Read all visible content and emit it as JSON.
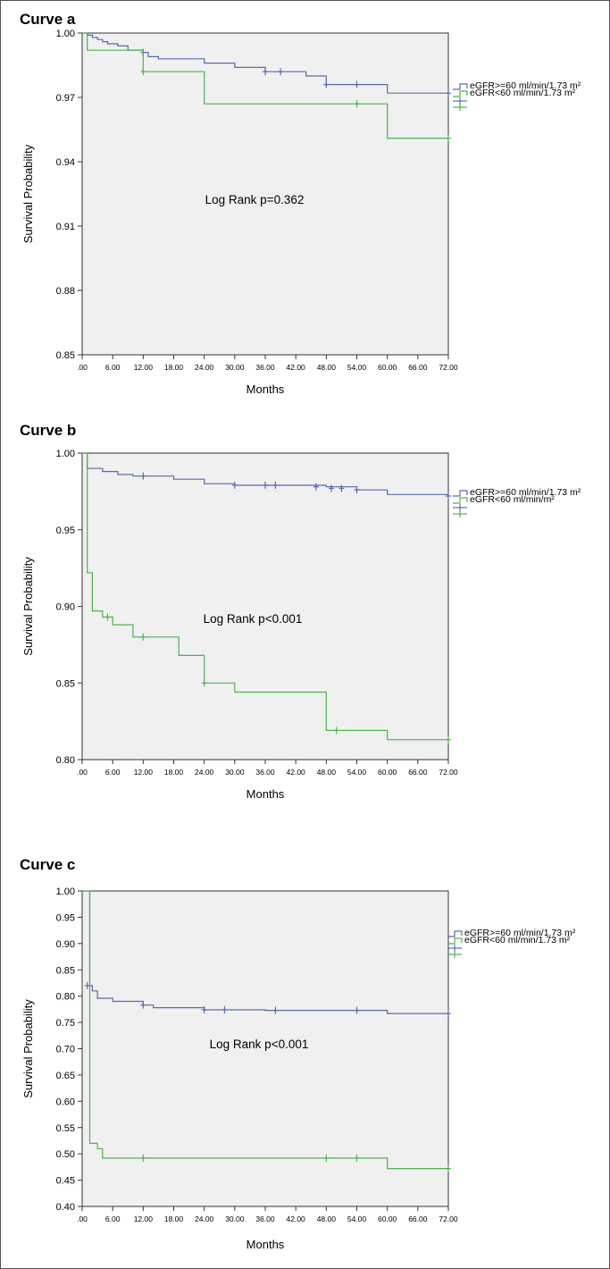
{
  "chart_data": [
    {
      "type": "line",
      "title": "Curve a",
      "xlabel": "Months",
      "ylabel": "Survival Probability",
      "xlim": [
        0,
        72
      ],
      "ylim": [
        0.85,
        1.0
      ],
      "yticks": [
        "0.85",
        "0.88",
        "0.91",
        "0.94",
        "0.97",
        "1.00"
      ],
      "ytick_values": [
        0.85,
        0.88,
        0.91,
        0.94,
        0.97,
        1.0
      ],
      "xticks": [
        ".00",
        "6.00",
        "12.00",
        "18.00",
        "24.00",
        "30.00",
        "36.00",
        "42.00",
        "48.00",
        "54.00",
        "60.00",
        "66.00",
        "72.00"
      ],
      "annotation": "Log Rank p=0.362",
      "grid": false,
      "legend": "right",
      "legend_entries": [
        "eGFR>=60 ml/min/1.73 m²",
        "eGFR<60 ml/min/1.73 m²"
      ],
      "series": [
        {
          "name": "eGFR>=60 ml/min/1.73 m²",
          "color": "#5a6aa8",
          "x": [
            0,
            1,
            2,
            3,
            4,
            5,
            7,
            9,
            12,
            13,
            15,
            24,
            30,
            36,
            40,
            44,
            48,
            54,
            60,
            72
          ],
          "y": [
            1.0,
            0.999,
            0.998,
            0.997,
            0.996,
            0.995,
            0.994,
            0.992,
            0.991,
            0.989,
            0.988,
            0.986,
            0.984,
            0.982,
            0.982,
            0.98,
            0.976,
            0.976,
            0.972,
            0.972
          ],
          "censored_x": [
            12,
            36,
            39,
            48,
            54,
            72
          ],
          "censored_y": [
            0.991,
            0.982,
            0.982,
            0.976,
            0.976,
            0.972
          ]
        },
        {
          "name": "eGFR<60 ml/min/1.73 m²",
          "color": "#4fb24f",
          "x": [
            0,
            1,
            12,
            24,
            60,
            72
          ],
          "y": [
            1.0,
            0.992,
            0.982,
            0.967,
            0.951,
            0.951
          ],
          "censored_x": [
            12,
            54,
            72
          ],
          "censored_y": [
            0.982,
            0.967,
            0.951
          ]
        }
      ]
    },
    {
      "type": "line",
      "title": "Curve b",
      "xlabel": "Months",
      "ylabel": "Survival Probability",
      "xlim": [
        0,
        72
      ],
      "ylim": [
        0.8,
        1.0
      ],
      "yticks": [
        "0.80",
        "0.85",
        "0.90",
        "0.95",
        "1.00"
      ],
      "ytick_values": [
        0.8,
        0.85,
        0.9,
        0.95,
        1.0
      ],
      "xticks": [
        ".00",
        "6.00",
        "12.00",
        "18.00",
        "24.00",
        "30.00",
        "36.00",
        "42.00",
        "48.00",
        "54.00",
        "60.00",
        "66.00",
        "72.00"
      ],
      "annotation": "Log Rank p<0.001",
      "grid": false,
      "legend": "right",
      "legend_entries": [
        "eGFR>=60 ml/min/1.73 m²",
        "eGFR<60 ml/min/m²"
      ],
      "series": [
        {
          "name": "eGFR>=60 ml/min/1.73 m²",
          "color": "#5a6aa8",
          "x": [
            0,
            1,
            4,
            7,
            10,
            18,
            24,
            30,
            48,
            54,
            60,
            72
          ],
          "y": [
            1.0,
            0.99,
            0.988,
            0.986,
            0.985,
            0.983,
            0.98,
            0.979,
            0.978,
            0.976,
            0.973,
            0.972
          ],
          "censored_x": [
            12,
            30,
            36,
            38,
            46,
            49,
            51,
            54,
            72
          ],
          "censored_y": [
            0.985,
            0.979,
            0.979,
            0.979,
            0.978,
            0.977,
            0.977,
            0.976,
            0.972
          ],
          "first_drop": 1
        },
        {
          "name": "eGFR<60 ml/min/m²",
          "color": "#4fb24f",
          "x": [
            0,
            1,
            2,
            4,
            6,
            10,
            19,
            24,
            30,
            48,
            60,
            72
          ],
          "y": [
            1.0,
            0.922,
            0.897,
            0.893,
            0.888,
            0.88,
            0.868,
            0.85,
            0.844,
            0.819,
            0.813,
            0.813
          ],
          "censored_x": [
            5,
            12,
            24,
            50,
            72
          ],
          "censored_y": [
            0.893,
            0.88,
            0.85,
            0.819,
            0.813
          ],
          "first_drop": 1
        }
      ]
    },
    {
      "type": "line",
      "title": "Curve c",
      "xlabel": "Months",
      "ylabel": "Survival Probability",
      "xlim": [
        0,
        72
      ],
      "ylim": [
        0.4,
        1.0
      ],
      "yticks": [
        "0.40",
        "0.45",
        "0.50",
        "0.55",
        "0.60",
        "0.65",
        "0.70",
        "0.75",
        "0.80",
        "0.85",
        "0.90",
        "0.95",
        "1.00"
      ],
      "ytick_values": [
        0.4,
        0.45,
        0.5,
        0.55,
        0.6,
        0.65,
        0.7,
        0.75,
        0.8,
        0.85,
        0.9,
        0.95,
        1.0
      ],
      "xticks": [
        ".00",
        "6.00",
        "12.00",
        "18.00",
        "24.00",
        "30.00",
        "36.00",
        "42.00",
        "48.00",
        "54.00",
        "60.00",
        "66.00",
        "72.00"
      ],
      "annotation": "Log Rank p<0.001",
      "grid": false,
      "legend": "right",
      "legend_entries": [
        "eGFR>=60 ml/min/1.73 m²",
        "eGFR<60 ml/min/1.73 m²"
      ],
      "series": [
        {
          "name": "eGFR>=60 ml/min/1.73 m²",
          "color": "#5a6aa8",
          "x": [
            0,
            1.5,
            2,
            3,
            6,
            12,
            14,
            24,
            36,
            60,
            72
          ],
          "y": [
            1.0,
            0.82,
            0.81,
            0.796,
            0.79,
            0.783,
            0.778,
            0.774,
            0.773,
            0.767,
            0.767
          ],
          "censored_x": [
            1,
            12,
            24,
            28,
            38,
            54,
            72
          ],
          "censored_y": [
            0.82,
            0.783,
            0.774,
            0.774,
            0.773,
            0.773,
            0.767
          ],
          "first_drop": 1.5
        },
        {
          "name": "eGFR<60 ml/min/1.73 m²",
          "color": "#4fb24f",
          "x": [
            0,
            1.5,
            3,
            4,
            60,
            72
          ],
          "y": [
            1.0,
            0.52,
            0.51,
            0.492,
            0.472,
            0.472
          ],
          "censored_x": [
            12,
            48,
            54,
            72
          ],
          "censored_y": [
            0.492,
            0.492,
            0.492,
            0.472
          ],
          "first_drop": 1.5
        }
      ]
    }
  ]
}
